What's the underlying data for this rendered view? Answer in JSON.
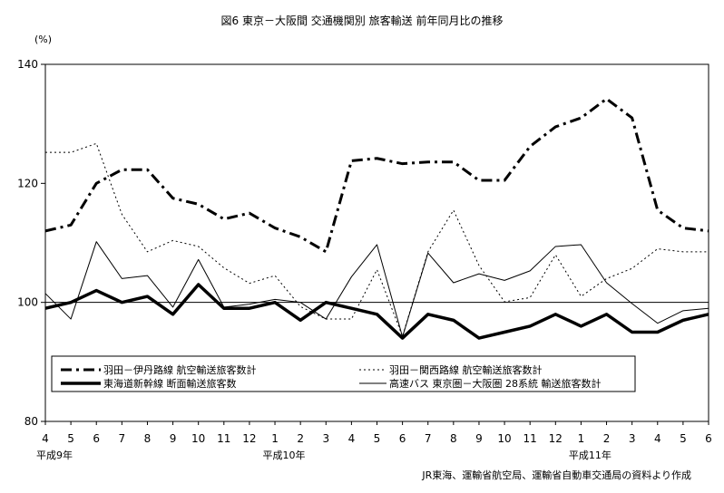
{
  "chart_data": {
    "type": "line",
    "title": "図6 東京－大阪間 交通機関別 旅客輸送 前年同月比の推移",
    "ylabel": "(%)",
    "ylim": [
      80,
      140
    ],
    "yticks": [
      80,
      100,
      120,
      140
    ],
    "reference_line": 100,
    "grid": false,
    "legend_position": "bottom-inside",
    "categories": [
      "4",
      "5",
      "6",
      "7",
      "8",
      "9",
      "10",
      "11",
      "12",
      "1",
      "2",
      "3",
      "4",
      "5",
      "6",
      "7",
      "8",
      "9",
      "10",
      "11",
      "12",
      "1",
      "2",
      "3",
      "4",
      "5",
      "6"
    ],
    "year_labels": [
      {
        "label": "平成9年",
        "index": 0
      },
      {
        "label": "平成10年",
        "index": 9
      },
      {
        "label": "平成11年",
        "index": 21
      }
    ],
    "source": "JR東海、運輸省航空局、運輸省自動車交通局の資料より作成",
    "series": [
      {
        "name": "羽田－伊丹路線 航空輸送旅客数計",
        "style": "dashdot",
        "values": [
          112,
          113,
          120,
          122.3,
          122.3,
          117.5,
          116.5,
          114,
          115,
          112.5,
          111,
          108.5,
          123.8,
          124.2,
          123.3,
          123.6,
          123.6,
          120.5,
          120.5,
          126.2,
          129.5,
          131,
          134.2,
          131,
          115.5,
          112.5,
          112
        ]
      },
      {
        "name": "羽田－関西路線 航空輸送旅客数計",
        "style": "dotted",
        "values": [
          125.2,
          125.2,
          126.7,
          114.8,
          108.5,
          110.4,
          109.4,
          105.8,
          103.2,
          104.5,
          99.3,
          97.2,
          97.2,
          105.5,
          94.3,
          108.5,
          115.5,
          106.2,
          100.1,
          100.8,
          108,
          101,
          104,
          105.7,
          109,
          108.5,
          108.5
        ]
      },
      {
        "name": "東海道新幹線 断面輸送旅客数",
        "style": "thick",
        "values": [
          99,
          100,
          102,
          100,
          101,
          98,
          103,
          99,
          99,
          100,
          97,
          100,
          99,
          98,
          94,
          98,
          97,
          94,
          95,
          96,
          98,
          96,
          98,
          95,
          95,
          97,
          98
        ]
      },
      {
        "name": "高速バス 東京圏－大阪圏 28系統 輸送旅客数計",
        "style": "thin",
        "values": [
          101.5,
          97.2,
          110.2,
          104,
          104.5,
          99.2,
          107.2,
          99.2,
          99.7,
          100.5,
          100,
          97.2,
          104.3,
          109.7,
          94.2,
          108.3,
          103.3,
          104.8,
          103.7,
          105.3,
          109.4,
          109.7,
          103.3,
          99.8,
          96.5,
          98.6,
          99
        ]
      }
    ]
  }
}
